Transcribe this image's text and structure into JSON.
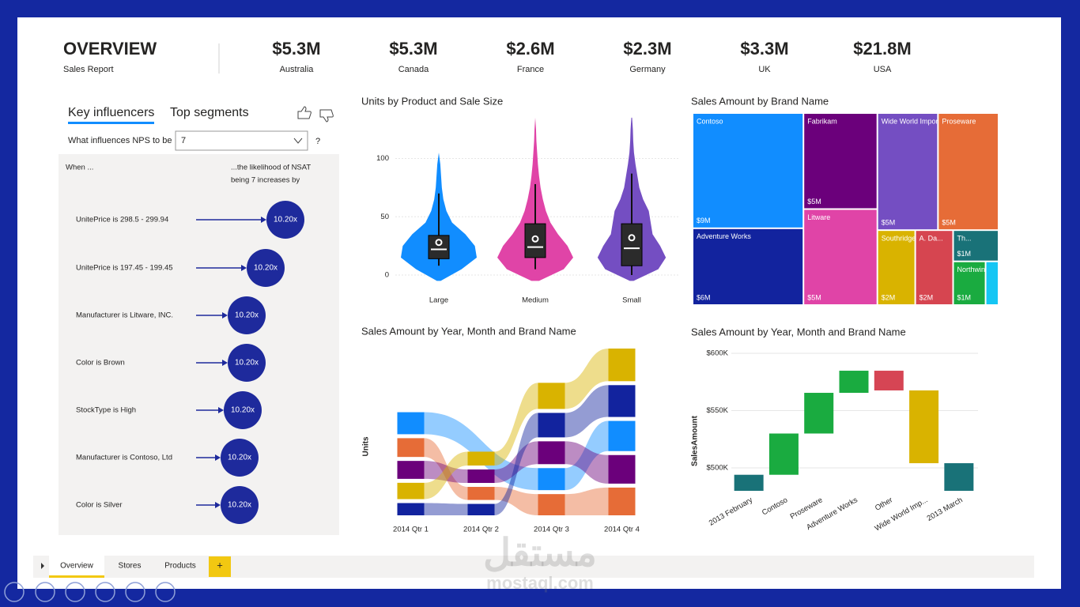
{
  "header": {
    "title": "OVERVIEW",
    "subtitle": "Sales Report",
    "kpis": [
      {
        "value": "$5.3M",
        "label": "Australia"
      },
      {
        "value": "$5.3M",
        "label": "Canada"
      },
      {
        "value": "$2.6M",
        "label": "France"
      },
      {
        "value": "$2.3M",
        "label": "Germany"
      },
      {
        "value": "$3.3M",
        "label": "UK"
      },
      {
        "value": "$21.8M",
        "label": "USA"
      }
    ]
  },
  "key_influencers": {
    "tabs": [
      "Key influencers",
      "Top segments"
    ],
    "question": "What influences NPS to be",
    "selected": "7",
    "help": "?",
    "when": "When ...",
    "likelihood": [
      "...the likelihood of NSAT",
      "being 7 increases by"
    ],
    "items": [
      {
        "label": "UnitePrice is 298.5 - 299.94",
        "value": "10.20x"
      },
      {
        "label": "UnitePrice is 197.45 - 199.45",
        "value": "10.20x"
      },
      {
        "label": "Manufacturer is Litware, INC.",
        "value": "10.20x"
      },
      {
        "label": "Color is Brown",
        "value": "10.20x"
      },
      {
        "label": "StockType is High",
        "value": "10.20x"
      },
      {
        "label": "Manufacturer is Contoso, Ltd",
        "value": "10.20x"
      },
      {
        "label": "Color is Silver",
        "value": "10.20x"
      }
    ]
  },
  "chart_data": [
    {
      "type": "violin",
      "title": "Units by Product and Sale Size",
      "categories": [
        "Large",
        "Medium",
        "Small"
      ],
      "colors": [
        "#118dff",
        "#e044a7",
        "#744ec2"
      ],
      "ylim": [
        -10,
        140
      ],
      "yticks": [
        0,
        50,
        100
      ],
      "grid": true,
      "density_y": [
        -5,
        5,
        15,
        25,
        35,
        45,
        55,
        65,
        75,
        85,
        95,
        105,
        115,
        125,
        135
      ],
      "density": [
        [
          0.05,
          0.6,
          1.0,
          0.95,
          0.7,
          0.35,
          0.2,
          0.12,
          0.08,
          0.06,
          0.04,
          0,
          0,
          0,
          0
        ],
        [
          0.1,
          0.75,
          1.0,
          0.85,
          0.6,
          0.4,
          0.28,
          0.2,
          0.14,
          0.1,
          0.07,
          0.05,
          0.03,
          0.02,
          0
        ],
        [
          0.05,
          0.7,
          0.9,
          0.75,
          0.55,
          0.5,
          0.45,
          0.3,
          0.2,
          0.15,
          0.1,
          0.06,
          0.04,
          0.03,
          0.01
        ]
      ],
      "whisker_low": [
        8,
        5,
        0
      ],
      "q1": [
        14,
        15,
        8
      ],
      "median": [
        22,
        24,
        23
      ],
      "q3": [
        34,
        44,
        44
      ],
      "whisker_high": [
        70,
        78,
        87
      ],
      "mean": [
        28,
        31,
        32
      ]
    },
    {
      "type": "treemap",
      "title": "Sales Amount by Brand Name",
      "categories": [
        "Contoso",
        "Adventure Works",
        "Fabrikam",
        "Litware",
        "Wide World Importers",
        "Proseware",
        "Southridge Video",
        "A. Da...",
        "Th...",
        "Northwin...",
        null
      ],
      "values": [
        9,
        6,
        5,
        5,
        5,
        5,
        2,
        2,
        1,
        1,
        0.4
      ],
      "value_labels": [
        "$9M",
        "$6M",
        "$5M",
        "$5M",
        "$5M",
        "$5M",
        "$2M",
        "$2M",
        "$1M",
        "$1M",
        null
      ],
      "colors": [
        "#118dff",
        "#12239e",
        "#6b007b",
        "#e044a7",
        "#744ec2",
        "#e66c37",
        "#d9b300",
        "#d64550",
        "#197278",
        "#1aab40",
        "#15c6f4"
      ]
    },
    {
      "type": "ribbon",
      "title": "Sales Amount by Year, Month and Brand Name",
      "y_label": "Units",
      "categories": [
        "2014 Qtr 1",
        "2014 Qtr 2",
        "2014 Qtr 3",
        "2014 Qtr 4"
      ],
      "series": [
        {
          "color": "#118dff",
          "values": [
            27,
            null,
            27,
            37
          ]
        },
        {
          "color": "#e66c37",
          "values": [
            23,
            16,
            26,
            34
          ]
        },
        {
          "color": "#6b007b",
          "values": [
            22,
            16.5,
            28,
            35
          ]
        },
        {
          "color": "#d9b300",
          "values": [
            20,
            17,
            32,
            40
          ]
        },
        {
          "color": "#12239e",
          "values": [
            15,
            14,
            30,
            39
          ]
        }
      ]
    },
    {
      "type": "waterfall",
      "title": "Sales Amount by Year, Month and Brand Name",
      "y_label": "SalesAmount",
      "categories": [
        "2013 February",
        "Contoso",
        "Proseware",
        "Adventure Works",
        "Other",
        "Wide World Imp...",
        "2013 March"
      ],
      "values": [
        494000,
        36000,
        35500,
        19300,
        -17200,
        -63500,
        504100
      ],
      "is_total": [
        true,
        false,
        false,
        false,
        false,
        false,
        true
      ],
      "colors": [
        "#197278",
        "#1aab40",
        "#1aab40",
        "#1aab40",
        "#d64554",
        "#d9b300",
        "#197278"
      ],
      "ylim": [
        480000,
        600000
      ],
      "yticks": [
        {
          "value": 500000,
          "label": "$500K"
        },
        {
          "value": 550000,
          "label": "$550K"
        },
        {
          "value": 600000,
          "label": "$600K"
        }
      ],
      "grid": true
    }
  ],
  "report_tabs": [
    "Overview",
    "Stores",
    "Products"
  ],
  "add_tab": "+",
  "watermark": {
    "text": "مستقل",
    "url": "mostaql.com"
  }
}
